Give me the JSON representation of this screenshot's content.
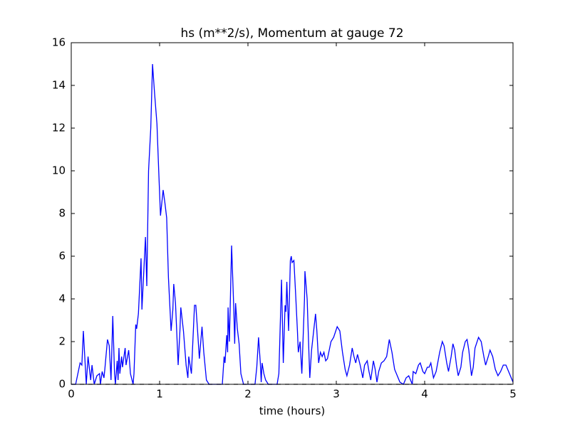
{
  "chart_data": {
    "type": "line",
    "title": "hs (m**2/s), Momentum at gauge 72",
    "xlabel": "time (hours)",
    "xlim": [
      0,
      5
    ],
    "ylim": [
      0,
      16
    ],
    "xticks": [
      0,
      1,
      2,
      3,
      4,
      5
    ],
    "yticks": [
      0,
      2,
      4,
      6,
      8,
      10,
      12,
      14,
      16
    ],
    "grid": false,
    "series": [
      {
        "color": "#0000ff",
        "linestyle": "solid",
        "x": [
          0,
          0.05,
          0.1,
          0.12,
          0.137,
          0.17,
          0.19,
          0.22,
          0.235,
          0.26,
          0.29,
          0.32,
          0.33,
          0.35,
          0.37,
          0.38,
          0.41,
          0.43,
          0.45,
          0.47,
          0.49,
          0.5,
          0.52,
          0.53,
          0.54,
          0.55,
          0.57,
          0.58,
          0.61,
          0.62,
          0.65,
          0.67,
          0.7,
          0.71,
          0.73,
          0.74,
          0.76,
          0.79,
          0.8,
          0.84,
          0.855,
          0.875,
          0.9,
          0.92,
          0.94,
          0.97,
          0.99,
          1.01,
          1.04,
          1.06,
          1.08,
          1.1,
          1.13,
          1.15,
          1.16,
          1.18,
          1.21,
          1.23,
          1.24,
          1.27,
          1.3,
          1.32,
          1.33,
          1.36,
          1.395,
          1.41,
          1.43,
          1.45,
          1.48,
          1.5,
          1.53,
          1.56,
          1.71,
          1.73,
          1.74,
          1.76,
          1.77,
          1.775,
          1.79,
          1.815,
          1.84,
          1.85,
          1.86,
          1.88,
          1.9,
          1.92,
          1.95,
          2.08,
          2.1,
          2.12,
          2.14,
          2.15,
          2.16,
          2.18,
          2.2,
          2.23,
          2.33,
          2.35,
          2.38,
          2.4,
          2.42,
          2.43,
          2.44,
          2.46,
          2.48,
          2.49,
          2.5,
          2.52,
          2.54,
          2.56,
          2.57,
          2.59,
          2.61,
          2.64,
          2.645,
          2.67,
          2.69,
          2.7,
          2.72,
          2.765,
          2.78,
          2.8,
          2.82,
          2.84,
          2.86,
          2.88,
          2.9,
          2.94,
          2.97,
          3.01,
          3.04,
          3.07,
          3.1,
          3.12,
          3.15,
          3.18,
          3.2,
          3.22,
          3.24,
          3.27,
          3.3,
          3.32,
          3.35,
          3.37,
          3.39,
          3.42,
          3.44,
          3.46,
          3.48,
          3.51,
          3.54,
          3.57,
          3.6,
          3.63,
          3.66,
          3.69,
          3.72,
          3.76,
          3.79,
          3.82,
          3.84,
          3.86,
          3.87,
          3.9,
          3.93,
          3.95,
          3.98,
          4.0,
          4.03,
          4.05,
          4.07,
          4.1,
          4.13,
          4.17,
          4.2,
          4.22,
          4.25,
          4.27,
          4.3,
          4.32,
          4.34,
          4.36,
          4.38,
          4.41,
          4.43,
          4.46,
          4.48,
          4.5,
          4.53,
          4.55,
          4.57,
          4.61,
          4.64,
          4.67,
          4.69,
          4.72,
          4.74,
          4.77,
          4.8,
          4.83,
          4.86,
          4.89,
          4.92,
          4.95,
          5.0
        ],
        "values": [
          0,
          0,
          1,
          0.9,
          2.5,
          0,
          1.3,
          0.2,
          0.9,
          0,
          0.4,
          0.5,
          0,
          0.6,
          0.3,
          0.7,
          2.1,
          1.8,
          0.2,
          3.2,
          0.5,
          0,
          1.1,
          0.2,
          1.7,
          0.5,
          1.3,
          0.8,
          1.7,
          0.9,
          1.6,
          0.5,
          0,
          0.5,
          2.8,
          2.6,
          3.3,
          5.9,
          3.5,
          6.9,
          4.6,
          10,
          12,
          15,
          13.8,
          12.2,
          10,
          7.9,
          9.1,
          8.5,
          7.8,
          5,
          2.5,
          3.5,
          4.7,
          3.8,
          0.9,
          2.5,
          3.6,
          2.5,
          0.9,
          0.3,
          1.3,
          0.5,
          3.7,
          3.7,
          2.5,
          1.2,
          2.7,
          1.5,
          0.2,
          0,
          0,
          1.3,
          1,
          2.3,
          1.5,
          3.6,
          2,
          6.5,
          3.5,
          1.9,
          3.8,
          2.6,
          1.9,
          0.5,
          0,
          0,
          0.8,
          2.2,
          1,
          0.1,
          1,
          0.5,
          0.2,
          0,
          0,
          0.5,
          4.9,
          1,
          3.7,
          3.4,
          4.8,
          2.5,
          5.8,
          6,
          5.7,
          5.8,
          4.2,
          2.5,
          1.5,
          2,
          0.5,
          4,
          5.3,
          4,
          1.5,
          0.3,
          1.6,
          3.3,
          2.5,
          1,
          1.5,
          1.3,
          1.5,
          1.1,
          1.2,
          2,
          2.2,
          2.7,
          2.5,
          1.5,
          0.7,
          0.4,
          0.9,
          1.7,
          1.3,
          1,
          1.4,
          0.9,
          0.3,
          0.9,
          1.1,
          0.6,
          0.2,
          1.1,
          0.7,
          0.1,
          0.6,
          1,
          1.1,
          1.3,
          2.1,
          1.5,
          0.7,
          0.4,
          0.1,
          0,
          0.3,
          0.4,
          0.2,
          0,
          0.6,
          0.5,
          0.9,
          1,
          0.6,
          0.5,
          0.8,
          0.8,
          1,
          0.3,
          0.6,
          1.5,
          2,
          1.8,
          1,
          0.6,
          1.3,
          1.9,
          1.6,
          0.9,
          0.4,
          0.8,
          1.5,
          2,
          2.1,
          1.6,
          0.4,
          0.8,
          1.7,
          2.2,
          2,
          1.3,
          0.9,
          1.3,
          1.6,
          1.3,
          0.7,
          0.4,
          0.6,
          0.9,
          0.9,
          0.6,
          0.1
        ]
      },
      {
        "color": "#000000",
        "linestyle": "dashed",
        "x": [
          0,
          5
        ],
        "values": [
          0,
          0
        ]
      }
    ]
  }
}
